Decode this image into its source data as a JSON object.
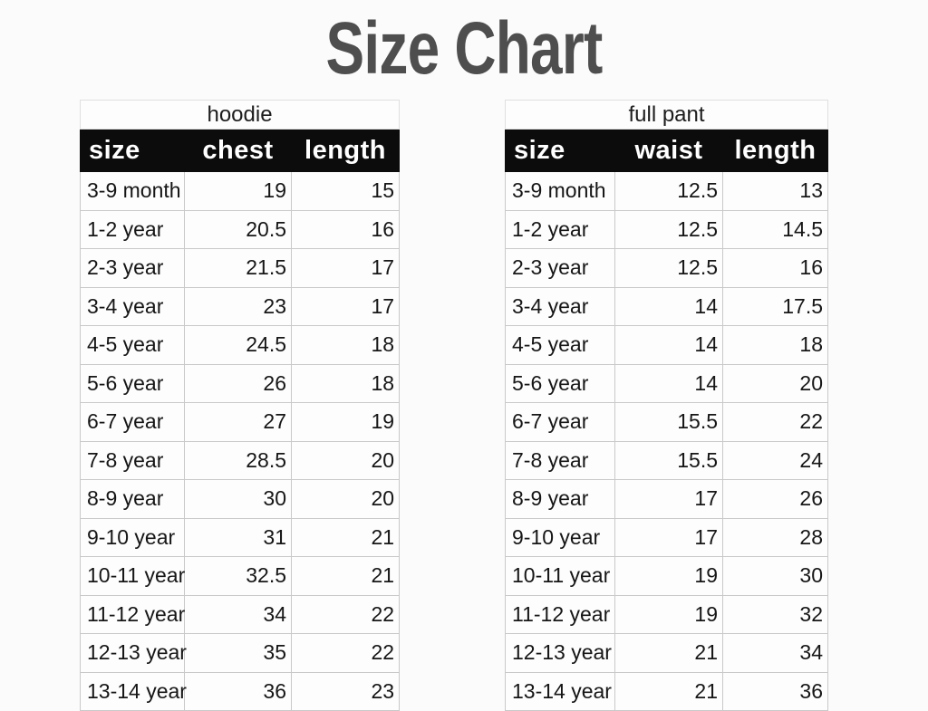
{
  "page": {
    "title": "Size Chart"
  },
  "colors": {
    "title_text": "#4e4e4e",
    "header_bg": "#0c0c0c",
    "header_text": "#ffffff",
    "grid_line": "#c9c9c9",
    "cell_bg": "#fdfdfd",
    "body_text": "#161616",
    "page_bg": "#fbfbfb"
  },
  "chart_data": [
    {
      "type": "table",
      "title": "hoodie",
      "columns": [
        "size",
        "chest",
        "length"
      ],
      "rows": [
        [
          "3-9 month",
          "19",
          "15"
        ],
        [
          "1-2 year",
          "20.5",
          "16"
        ],
        [
          "2-3 year",
          "21.5",
          "17"
        ],
        [
          "3-4 year",
          "23",
          "17"
        ],
        [
          "4-5 year",
          "24.5",
          "18"
        ],
        [
          "5-6 year",
          "26",
          "18"
        ],
        [
          "6-7 year",
          "27",
          "19"
        ],
        [
          "7-8 year",
          "28.5",
          "20"
        ],
        [
          "8-9 year",
          "30",
          "20"
        ],
        [
          "9-10 year",
          "31",
          "21"
        ],
        [
          "10-11 year",
          "32.5",
          "21"
        ],
        [
          "11-12 year",
          "34",
          "22"
        ],
        [
          "12-13 year",
          "35",
          "22"
        ],
        [
          "13-14 year",
          "36",
          "23"
        ]
      ]
    },
    {
      "type": "table",
      "title": "full pant",
      "columns": [
        "size",
        "waist",
        "length"
      ],
      "rows": [
        [
          "3-9 month",
          "12.5",
          "13"
        ],
        [
          "1-2 year",
          "12.5",
          "14.5"
        ],
        [
          "2-3 year",
          "12.5",
          "16"
        ],
        [
          "3-4 year",
          "14",
          "17.5"
        ],
        [
          "4-5 year",
          "14",
          "18"
        ],
        [
          "5-6 year",
          "14",
          "20"
        ],
        [
          "6-7 year",
          "15.5",
          "22"
        ],
        [
          "7-8 year",
          "15.5",
          "24"
        ],
        [
          "8-9 year",
          "17",
          "26"
        ],
        [
          "9-10 year",
          "17",
          "28"
        ],
        [
          "10-11 year",
          "19",
          "30"
        ],
        [
          "11-12 year",
          "19",
          "32"
        ],
        [
          "12-13 year",
          "21",
          "34"
        ],
        [
          "13-14 year",
          "21",
          "36"
        ]
      ]
    }
  ]
}
